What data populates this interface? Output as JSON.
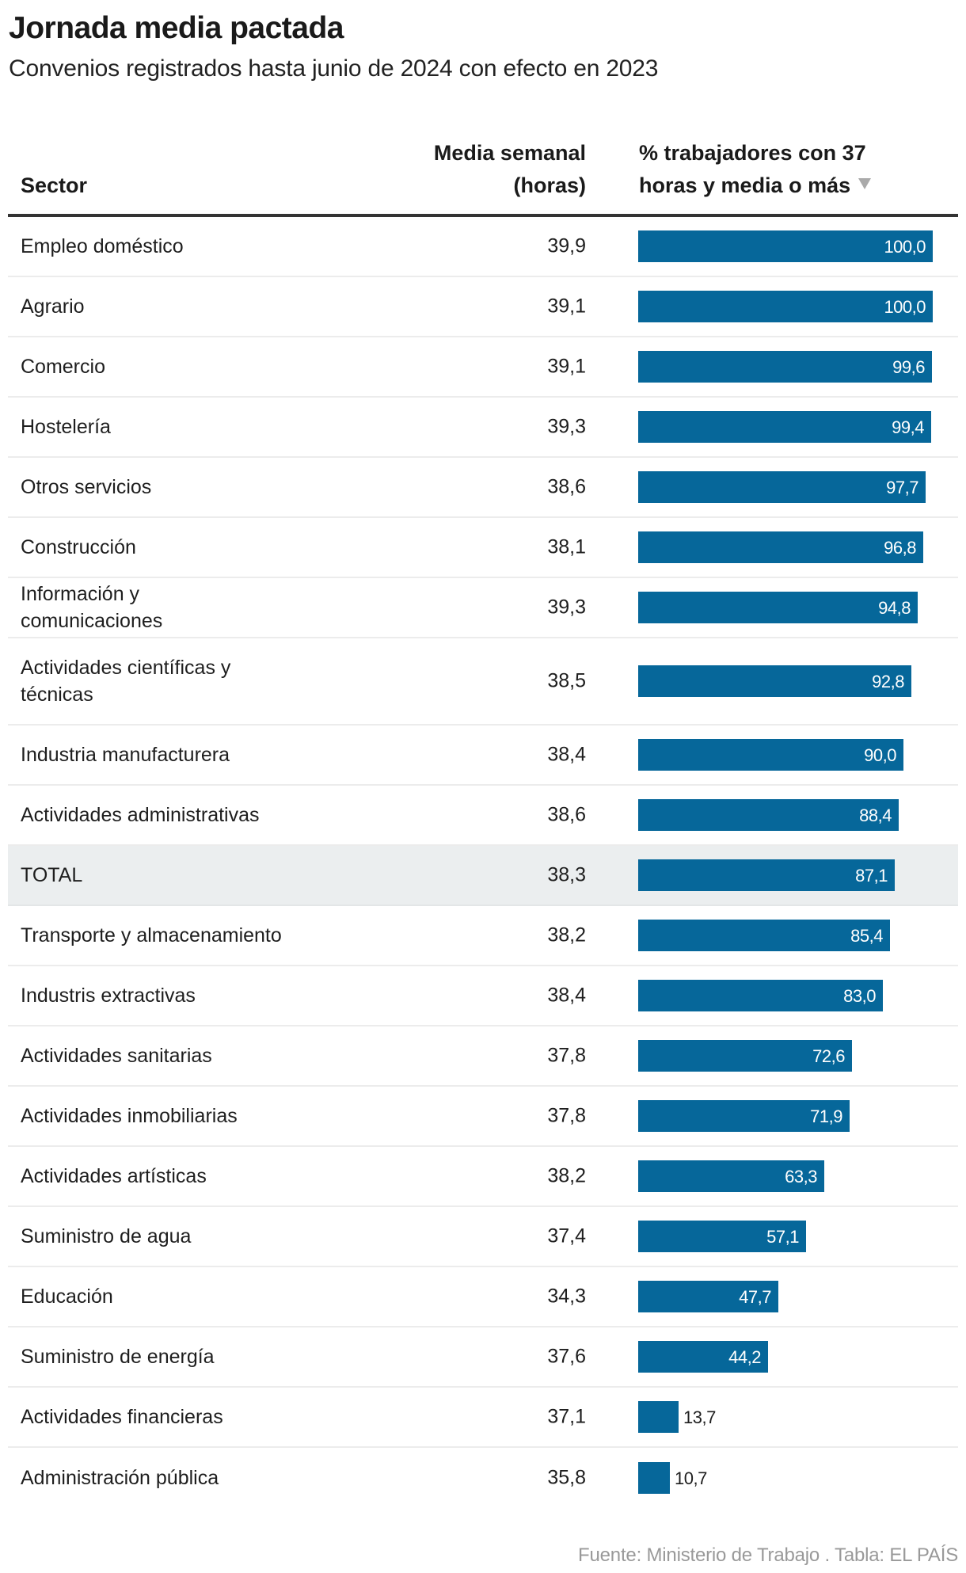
{
  "title": "Jornada media pactada",
  "subtitle": "Convenios registrados hasta junio de 2024 con efecto en 2023",
  "columns": {
    "sector": "Sector",
    "media": [
      "Media semanal",
      "(horas)"
    ],
    "pct": [
      "% trabajadores con 37",
      "horas y media o más"
    ],
    "sort_icon": "sort-descending-triangle"
  },
  "footer": "Fuente: Ministerio de Trabajo . Tabla: EL PAÍS",
  "colors": {
    "bar": "#06679a",
    "total_row_bg": "#ebeeef",
    "header_rule": "#333333",
    "footer_text": "#999999"
  },
  "chart_data": {
    "type": "table",
    "title": "Jornada media pactada",
    "subtitle": "Convenios registrados hasta junio de 2024 con efecto en 2023",
    "columns": [
      "Sector",
      "Media semanal (horas)",
      "% trabajadores con 37 horas y media o más"
    ],
    "sorted_by": "% trabajadores con 37 horas y media o más",
    "sort_order": "descending",
    "bar_scale_max": 100,
    "rows": [
      {
        "sector": "Empleo doméstico",
        "media": "39,9",
        "pct": 100.0,
        "pct_label": "100,0"
      },
      {
        "sector": "Agrario",
        "media": "39,1",
        "pct": 100.0,
        "pct_label": "100,0"
      },
      {
        "sector": "Comercio",
        "media": "39,1",
        "pct": 99.6,
        "pct_label": "99,6"
      },
      {
        "sector": "Hostelería",
        "media": "39,3",
        "pct": 99.4,
        "pct_label": "99,4"
      },
      {
        "sector": "Otros servicios",
        "media": "38,6",
        "pct": 97.7,
        "pct_label": "97,7"
      },
      {
        "sector": "Construcción",
        "media": "38,1",
        "pct": 96.8,
        "pct_label": "96,8"
      },
      {
        "sector": "Información y comunicaciones",
        "media": "39,3",
        "pct": 94.8,
        "pct_label": "94,8"
      },
      {
        "sector": "Actividades científicas y técnicas",
        "media": "38,5",
        "pct": 92.8,
        "pct_label": "92,8"
      },
      {
        "sector": "Industria manufacturera",
        "media": "38,4",
        "pct": 90.0,
        "pct_label": "90,0"
      },
      {
        "sector": "Actividades administrativas",
        "media": "38,6",
        "pct": 88.4,
        "pct_label": "88,4"
      },
      {
        "sector": "TOTAL",
        "media": "38,3",
        "pct": 87.1,
        "pct_label": "87,1",
        "highlight": true
      },
      {
        "sector": "Transporte y almacenamiento",
        "media": "38,2",
        "pct": 85.4,
        "pct_label": "85,4"
      },
      {
        "sector": "Industris extractivas",
        "media": "38,4",
        "pct": 83.0,
        "pct_label": "83,0"
      },
      {
        "sector": "Actividades sanitarias",
        "media": "37,8",
        "pct": 72.6,
        "pct_label": "72,6"
      },
      {
        "sector": "Actividades inmobiliarias",
        "media": "37,8",
        "pct": 71.9,
        "pct_label": "71,9"
      },
      {
        "sector": "Actividades artísticas",
        "media": "38,2",
        "pct": 63.3,
        "pct_label": "63,3"
      },
      {
        "sector": "Suministro de agua",
        "media": "37,4",
        "pct": 57.1,
        "pct_label": "57,1"
      },
      {
        "sector": "Educación",
        "media": "34,3",
        "pct": 47.7,
        "pct_label": "47,7"
      },
      {
        "sector": "Suministro de energía",
        "media": "37,6",
        "pct": 44.2,
        "pct_label": "44,2"
      },
      {
        "sector": "Actividades financieras",
        "media": "37,1",
        "pct": 13.7,
        "pct_label": "13,7"
      },
      {
        "sector": "Administración pública",
        "media": "35,8",
        "pct": 10.7,
        "pct_label": "10,7"
      }
    ]
  }
}
